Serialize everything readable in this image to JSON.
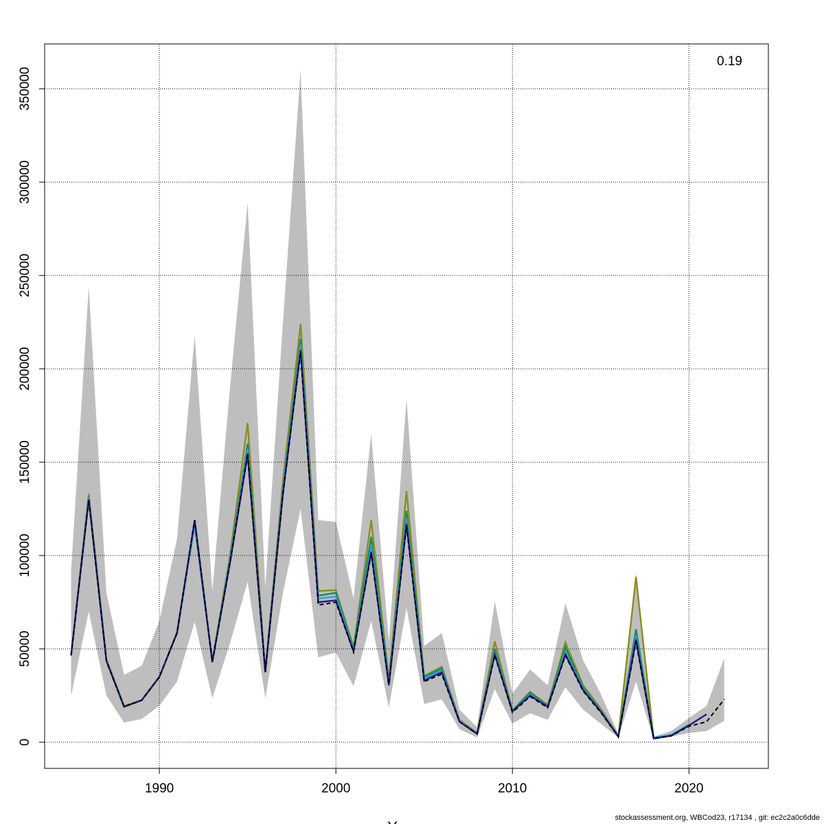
{
  "corner_label": "0.19",
  "footer": "stockassessment.org, WBCod23, r17134 , git: ec2c2a0c6dde",
  "colors": {
    "band": "#bebebe",
    "grid": "#000000",
    "reference": "#000000",
    "peels": [
      "#1f1a8c",
      "#3a9ad8",
      "#0d8f5c",
      "#8c8c1e",
      "#1aa046"
    ]
  },
  "chart_data": {
    "type": "line",
    "title": "",
    "xlabel": "Years",
    "ylabel": "",
    "xlim": [
      1983.5,
      2024.5
    ],
    "ylim": [
      -14000,
      374000
    ],
    "grid": true,
    "xticks": [
      1990,
      2000,
      2010,
      2020
    ],
    "yticks": [
      0,
      50000,
      100000,
      150000,
      200000,
      250000,
      300000,
      350000
    ],
    "confidence_band": {
      "x": [
        1985,
        1986,
        1987,
        1988,
        1989,
        1990,
        1991,
        1992,
        1993,
        1994,
        1995,
        1996,
        1997,
        1998,
        1999,
        2000,
        2001,
        2002,
        2003,
        2004,
        2005,
        2006,
        2007,
        2008,
        2009,
        2010,
        2011,
        2012,
        2013,
        2014,
        2015,
        2016,
        2017,
        2018,
        2019,
        2020,
        2021,
        2022
      ],
      "lower": [
        25000,
        70000,
        25000,
        10500,
        12500,
        19500,
        32500,
        64500,
        23500,
        53000,
        86000,
        23500,
        80000,
        125000,
        45500,
        48000,
        30000,
        65000,
        18500,
        72000,
        20500,
        23000,
        7000,
        2500,
        28500,
        10000,
        15500,
        12000,
        29500,
        17500,
        10000,
        2500,
        32500,
        1500,
        3000,
        5000,
        6000,
        11500
      ],
      "upper": [
        92000,
        244000,
        80000,
        36000,
        41000,
        65000,
        109000,
        218000,
        81000,
        190000,
        289000,
        83000,
        225000,
        360000,
        119000,
        118000,
        77000,
        165000,
        54000,
        184000,
        51500,
        58500,
        17500,
        8000,
        75500,
        26000,
        39000,
        30500,
        74500,
        44000,
        26000,
        4500,
        90500,
        3000,
        6000,
        13000,
        19500,
        45000
      ]
    },
    "series": [
      {
        "x": [
          1985,
          1986,
          1987,
          1988,
          1989,
          1990,
          1991,
          1992,
          1993,
          1994,
          1995,
          1996,
          1997,
          1998,
          1999,
          2000,
          2001,
          2002,
          2003,
          2004,
          2005,
          2006,
          2007,
          2008,
          2009,
          2010,
          2011,
          2012,
          2013,
          2014,
          2015,
          2016,
          2017,
          2018,
          2019,
          2020,
          2021,
          2022
        ],
        "values": [
          46500,
          130000,
          43500,
          19000,
          22500,
          35000,
          58500,
          119000,
          43000,
          96000,
          155000,
          37500,
          133000,
          209000,
          73500,
          75000,
          48500,
          101000,
          31000,
          116000,
          32500,
          36500,
          11000,
          4500,
          46500,
          16000,
          24500,
          18500,
          46500,
          27500,
          16000,
          3000,
          54000,
          2000,
          3500,
          8500,
          11000,
          23000
        ]
      },
      {
        "x": [
          1985,
          1986,
          1987,
          1988,
          1989,
          1990,
          1991,
          1992,
          1993,
          1994,
          1995,
          1996,
          1997,
          1998,
          1999,
          2000,
          2001,
          2002,
          2003,
          2004,
          2005,
          2006,
          2007,
          2008,
          2009,
          2010,
          2011,
          2012,
          2013,
          2014,
          2015,
          2016,
          2017,
          2018,
          2019,
          2020,
          2021
        ],
        "values": [
          46500,
          130000,
          43500,
          19000,
          22500,
          35000,
          58500,
          119000,
          43000,
          96000,
          154000,
          37500,
          133000,
          210000,
          75000,
          76000,
          48500,
          102000,
          30500,
          117000,
          33000,
          37500,
          11000,
          4500,
          47000,
          16500,
          25000,
          19000,
          47000,
          28000,
          16500,
          3000,
          55000,
          2000,
          3500,
          9000,
          15000
        ]
      },
      {
        "x": [
          1985,
          1986,
          1987,
          1988,
          1989,
          1990,
          1991,
          1992,
          1993,
          1994,
          1995,
          1996,
          1997,
          1998,
          1999,
          2000,
          2001,
          2002,
          2003,
          2004,
          2005,
          2006,
          2007,
          2008,
          2009,
          2010,
          2011,
          2012,
          2013,
          2014,
          2015,
          2016,
          2017,
          2018,
          2019,
          2020
        ],
        "values": [
          46500,
          131000,
          44000,
          19000,
          22500,
          35000,
          58500,
          117000,
          43000,
          97000,
          157000,
          38000,
          135000,
          213000,
          77000,
          78000,
          49000,
          105000,
          32000,
          120000,
          34000,
          38500,
          11500,
          4500,
          48500,
          16500,
          25500,
          19000,
          48500,
          28500,
          17000,
          3000,
          57000,
          2500,
          4000,
          9500
        ]
      },
      {
        "x": [
          1985,
          1986,
          1987,
          1988,
          1989,
          1990,
          1991,
          1992,
          1993,
          1994,
          1995,
          1996,
          1997,
          1998,
          1999,
          2000,
          2001,
          2002,
          2003,
          2004,
          2005,
          2006,
          2007,
          2008,
          2009,
          2010,
          2011,
          2012,
          2013,
          2014,
          2015,
          2016,
          2017,
          2018,
          2019
        ],
        "values": [
          46500,
          131500,
          44000,
          19000,
          22500,
          35000,
          58500,
          116500,
          43000,
          98000,
          160000,
          38000,
          136000,
          216000,
          78500,
          80000,
          50000,
          110000,
          33000,
          124000,
          35000,
          39500,
          11500,
          4500,
          50000,
          17000,
          26500,
          19500,
          51000,
          29500,
          17000,
          3000,
          60500,
          2500,
          3500
        ]
      },
      {
        "x": [
          1985,
          1986,
          1987,
          1988,
          1989,
          1990,
          1991,
          1992,
          1993,
          1994,
          1995,
          1996,
          1997,
          1998,
          1999,
          2000,
          2001,
          2002,
          2003,
          2004,
          2005,
          2006,
          2007,
          2008,
          2009,
          2010,
          2011,
          2012,
          2013,
          2014,
          2015,
          2016,
          2017,
          2018
        ],
        "values": [
          46500,
          133000,
          44500,
          19500,
          22500,
          35000,
          59000,
          116500,
          43500,
          100000,
          171000,
          38000,
          140000,
          224000,
          81000,
          81500,
          51000,
          119000,
          34000,
          134500,
          35500,
          40500,
          12000,
          5000,
          54000,
          17000,
          27000,
          20000,
          53500,
          30500,
          18000,
          3500,
          88500,
          2500
        ]
      }
    ]
  }
}
